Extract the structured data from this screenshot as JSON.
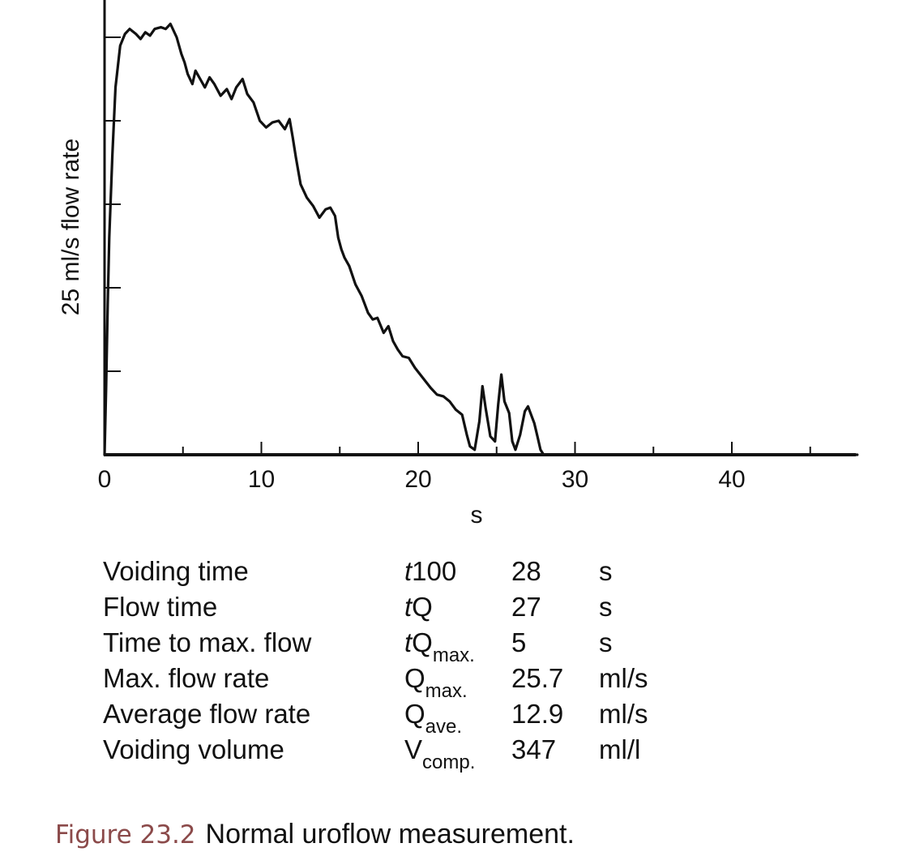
{
  "chart_data": {
    "type": "line",
    "title": "",
    "xlabel": "s",
    "ylabel": "25 ml/s flow rate",
    "xlim": [
      0,
      48
    ],
    "ylim": [
      0,
      26
    ],
    "x_ticks_major": [
      0,
      10,
      20,
      30,
      40
    ],
    "x_tick_labels": [
      "0",
      "10",
      "20",
      "30",
      "40"
    ],
    "x_ticks_minor": [
      5,
      15,
      25,
      35,
      45
    ],
    "y_ticks": [
      5,
      10,
      15,
      20,
      25
    ],
    "y_tick_labels": [],
    "grid": false,
    "series": [
      {
        "x": [
          0,
          0.1,
          0.2,
          0.3,
          0.5,
          0.7,
          1.0,
          1.3,
          1.6,
          2.0,
          2.3,
          2.6,
          2.9,
          3.2,
          3.6,
          3.9,
          4.2,
          4.6,
          4.9,
          5.1,
          5.3,
          5.6,
          5.8,
          6.1,
          6.4,
          6.7,
          7.0,
          7.4,
          7.8,
          8.1,
          8.4,
          8.8,
          9.1,
          9.5,
          9.9,
          10.3,
          10.7,
          11.1,
          11.5,
          11.8,
          12.0,
          12.2,
          12.5,
          12.9,
          13.3,
          13.7,
          14.1,
          14.4,
          14.7,
          14.9,
          15.1,
          15.3,
          15.6,
          16.0,
          16.4,
          16.8,
          17.1,
          17.4,
          17.8,
          18.1,
          18.4,
          18.7,
          19.0,
          19.4,
          19.8,
          20.3,
          20.8,
          21.2,
          21.6,
          22.0,
          22.4,
          22.8,
          23.1,
          23.3,
          23.6,
          23.9,
          24.1,
          24.3,
          24.6,
          24.9,
          25.1,
          25.3,
          25.5,
          25.8,
          26.0,
          26.2,
          26.5,
          26.8,
          27.0,
          27.2,
          27.4,
          27.6,
          27.8,
          28.0,
          28.3,
          29.0,
          30.0,
          40.0,
          48.0
        ],
        "y": [
          0,
          4,
          9,
          13,
          18,
          22,
          24.5,
          25.2,
          25.5,
          25.2,
          24.9,
          25.3,
          25.1,
          25.5,
          25.6,
          25.5,
          25.8,
          25.0,
          24.0,
          23.5,
          22.8,
          22.2,
          23.0,
          22.5,
          22.0,
          22.6,
          22.2,
          21.5,
          21.9,
          21.3,
          22.0,
          22.5,
          21.6,
          21.1,
          20.0,
          19.6,
          19.9,
          20.0,
          19.5,
          20.1,
          19.0,
          17.8,
          16.2,
          15.4,
          14.9,
          14.2,
          14.7,
          14.8,
          14.3,
          13.0,
          12.3,
          11.8,
          11.3,
          10.2,
          9.5,
          8.5,
          8.1,
          8.2,
          7.3,
          7.7,
          6.8,
          6.3,
          5.9,
          5.8,
          5.2,
          4.6,
          4.0,
          3.6,
          3.5,
          3.2,
          2.7,
          2.4,
          1.2,
          0.5,
          0.3,
          2.0,
          4.1,
          2.8,
          1.1,
          0.8,
          3.0,
          4.8,
          3.2,
          2.5,
          0.8,
          0.3,
          1.2,
          2.6,
          2.9,
          2.4,
          1.9,
          1.1,
          0.3,
          0.0,
          0.0,
          0.0,
          0.0,
          0.0,
          0.0
        ]
      }
    ]
  },
  "parameters": [
    {
      "label": "Voiding time",
      "symbol": "t",
      "symbol_rest": "100",
      "subscript": "",
      "value": "28",
      "unit": "s"
    },
    {
      "label": "Flow time",
      "symbol": "t",
      "symbol_rest": "Q",
      "subscript": "",
      "value": "27",
      "unit": "s"
    },
    {
      "label": "Time to max. flow",
      "symbol": "t",
      "symbol_rest": "Q",
      "subscript": "max.",
      "value": "5",
      "unit": "s"
    },
    {
      "label": "Max. flow rate",
      "symbol": "",
      "symbol_rest": "Q",
      "subscript": "max.",
      "value": "25.7",
      "unit": "ml/s"
    },
    {
      "label": "Average flow rate",
      "symbol": "",
      "symbol_rest": "Q",
      "subscript": "ave.",
      "value": "12.9",
      "unit": "ml/s"
    },
    {
      "label": "Voiding volume",
      "symbol": "",
      "symbol_rest": "V",
      "subscript": "comp.",
      "value": "347",
      "unit": "ml/l"
    }
  ],
  "caption": {
    "figure_number": "Figure 23.2",
    "text": "Normal uroflow measurement."
  }
}
